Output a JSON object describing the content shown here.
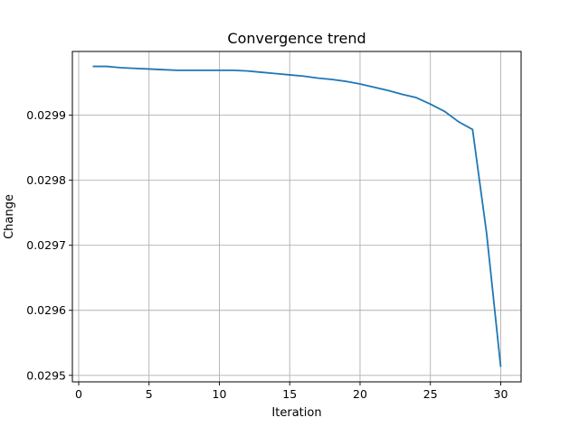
{
  "chart_data": {
    "type": "line",
    "title": "Convergence trend",
    "xlabel": "Iteration",
    "ylabel": "Change",
    "xlim": [
      -0.45,
      31.45
    ],
    "ylim": [
      0.02949,
      0.029998
    ],
    "xticks": [
      0,
      5,
      10,
      15,
      20,
      25,
      30
    ],
    "yticks": [
      0.0295,
      0.0296,
      0.0297,
      0.0298,
      0.0299
    ],
    "ytick_labels": [
      "0.0295",
      "0.0296",
      "0.0297",
      "0.0298",
      "0.0299"
    ],
    "grid": true,
    "series": [
      {
        "color": "#1f77b4",
        "x": [
          1,
          2,
          3,
          4,
          5,
          6,
          7,
          8,
          9,
          10,
          11,
          12,
          13,
          14,
          15,
          16,
          17,
          18,
          19,
          20,
          21,
          22,
          23,
          24,
          25,
          26,
          27,
          28,
          29,
          30
        ],
        "y": [
          0.029975,
          0.029975,
          0.029973,
          0.029972,
          0.029971,
          0.02997,
          0.029969,
          0.029969,
          0.029969,
          0.029969,
          0.029969,
          0.029968,
          0.029966,
          0.029964,
          0.029962,
          0.02996,
          0.029957,
          0.029955,
          0.029952,
          0.029948,
          0.029943,
          0.029938,
          0.029932,
          0.029927,
          0.029917,
          0.029906,
          0.02989,
          0.029878,
          0.029718,
          0.029513
        ]
      }
    ]
  }
}
